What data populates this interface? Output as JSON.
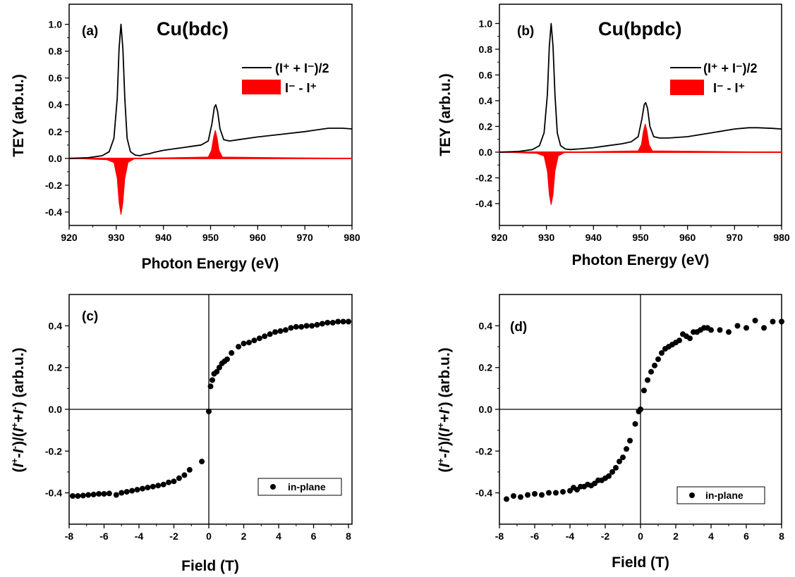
{
  "colors": {
    "sum": "#000000",
    "diff": "#ff0000",
    "points": "#000000"
  },
  "chart_data": [
    {
      "type": "line",
      "panel_label": "(a)",
      "title": "Cu(bdc)",
      "xlabel": "Photon Energy (eV)",
      "ylabel": "TEY (arb.u.)",
      "xlim": [
        920,
        980
      ],
      "ylim": [
        -0.5,
        1.15
      ],
      "xticks": [
        "920",
        "930",
        "940",
        "950",
        "960",
        "970",
        "980"
      ],
      "yticks": [
        "-0.4",
        "-0.2",
        "0.0",
        "0.2",
        "0.4",
        "0.6",
        "0.8",
        "1.0"
      ],
      "legend_position": "right",
      "legend": {
        "sum": "(I⁺ + I⁻)/2",
        "diff": "I⁻  -  I⁺"
      },
      "series": [
        {
          "name": "(I⁺ + I⁻)/2",
          "style": "line",
          "x": [
            920,
            924,
            927,
            928.5,
            929.5,
            930.2,
            930.6,
            931,
            931.4,
            931.8,
            932.3,
            933,
            934,
            935,
            936,
            937,
            938,
            940,
            942,
            944,
            946,
            948,
            949.5,
            950.3,
            950.8,
            951.1,
            951.5,
            952,
            952.8,
            954,
            956,
            960,
            965,
            970,
            972,
            975,
            978,
            980
          ],
          "y": [
            0.0,
            0.005,
            0.02,
            0.05,
            0.15,
            0.45,
            0.82,
            1.0,
            0.82,
            0.45,
            0.15,
            0.05,
            0.025,
            0.02,
            0.03,
            0.035,
            0.045,
            0.06,
            0.07,
            0.08,
            0.09,
            0.1,
            0.13,
            0.26,
            0.38,
            0.4,
            0.35,
            0.22,
            0.14,
            0.13,
            0.14,
            0.16,
            0.18,
            0.2,
            0.21,
            0.225,
            0.225,
            0.22
          ]
        },
        {
          "name": "I⁻  -  I⁺",
          "style": "fill",
          "x": [
            920,
            928,
            929.5,
            930.2,
            930.6,
            931,
            931.4,
            931.8,
            932.5,
            934,
            949.5,
            950.2,
            950.6,
            951,
            951.4,
            951.8,
            952.5,
            980
          ],
          "y": [
            0.0,
            -0.01,
            -0.03,
            -0.15,
            -0.33,
            -0.42,
            -0.33,
            -0.15,
            -0.03,
            0.0,
            0.01,
            0.06,
            0.15,
            0.21,
            0.15,
            0.06,
            0.01,
            0.0
          ]
        }
      ]
    },
    {
      "type": "line",
      "panel_label": "(b)",
      "title": "Cu(bpdc)",
      "xlabel": "Photon Energy (eV)",
      "ylabel": "TEY (arb.u.)",
      "xlim": [
        920,
        980
      ],
      "ylim": [
        -0.57,
        1.15
      ],
      "xticks": [
        "920",
        "930",
        "940",
        "950",
        "960",
        "970",
        "980"
      ],
      "yticks": [
        "-0.4",
        "-0.2",
        "0.0",
        "0.2",
        "0.4",
        "0.6",
        "0.8",
        "1.0"
      ],
      "legend_position": "right",
      "legend": {
        "sum": "(I⁺ + I⁻)/2",
        "diff": "I⁻  -  I⁺"
      },
      "series": [
        {
          "name": "(I⁺ + I⁻)/2",
          "style": "line",
          "x": [
            920,
            924,
            927,
            928.5,
            929.5,
            930.2,
            930.6,
            931,
            931.4,
            931.8,
            932.3,
            933,
            934,
            935,
            937,
            940,
            943,
            946,
            948,
            949.5,
            950.3,
            950.8,
            951.1,
            951.5,
            952,
            952.8,
            954,
            956,
            960,
            965,
            970,
            973,
            975,
            978,
            980
          ],
          "y": [
            0.0,
            0.005,
            0.02,
            0.05,
            0.15,
            0.45,
            0.82,
            1.0,
            0.82,
            0.45,
            0.15,
            0.05,
            0.025,
            0.02,
            0.025,
            0.035,
            0.05,
            0.065,
            0.08,
            0.12,
            0.26,
            0.37,
            0.385,
            0.34,
            0.2,
            0.12,
            0.11,
            0.11,
            0.12,
            0.15,
            0.18,
            0.19,
            0.19,
            0.185,
            0.18
          ]
        },
        {
          "name": "I⁻  -  I⁺",
          "style": "fill",
          "x": [
            920,
            928,
            929.5,
            930.2,
            930.6,
            931,
            931.4,
            931.8,
            932.5,
            934,
            949.5,
            950.2,
            950.6,
            951,
            951.4,
            951.8,
            952.5,
            980
          ],
          "y": [
            0.0,
            -0.01,
            -0.03,
            -0.15,
            -0.33,
            -0.41,
            -0.33,
            -0.15,
            -0.03,
            0.0,
            0.01,
            0.06,
            0.16,
            0.22,
            0.16,
            0.06,
            0.01,
            0.0
          ]
        }
      ]
    },
    {
      "type": "scatter",
      "panel_label": "(c)",
      "xlabel": "Field (T)",
      "ylabel": "(I⁺-I⁻)/(I⁺+I⁻) (arb.u.)",
      "xlim": [
        -8,
        8.2
      ],
      "ylim": [
        -0.55,
        0.55
      ],
      "xticks": [
        "-8",
        "-6",
        "-4",
        "-2",
        "0",
        "2",
        "4",
        "6",
        "8"
      ],
      "yticks": [
        "-0.4",
        "-0.2",
        "0.0",
        "0.2",
        "0.4"
      ],
      "legend_position": "bottom-right",
      "legend": {
        "points": "in-plane"
      },
      "series": [
        {
          "name": "in-plane",
          "x": [
            -7.8,
            -7.5,
            -7.2,
            -6.9,
            -6.6,
            -6.3,
            -6.0,
            -5.7,
            -5.3,
            -5.0,
            -4.7,
            -4.4,
            -4.1,
            -3.8,
            -3.5,
            -3.2,
            -2.9,
            -2.6,
            -2.3,
            -2.0,
            -1.7,
            -1.4,
            -1.1,
            -0.4,
            0.0,
            0.1,
            0.2,
            0.3,
            0.45,
            0.6,
            0.75,
            0.9,
            1.05,
            1.3,
            1.7,
            2.0,
            2.3,
            2.6,
            2.9,
            3.2,
            3.5,
            3.8,
            4.1,
            4.4,
            4.7,
            5.0,
            5.3,
            5.6,
            5.9,
            6.2,
            6.5,
            6.8,
            7.1,
            7.4,
            7.7,
            8.0
          ],
          "y": [
            -0.415,
            -0.415,
            -0.413,
            -0.41,
            -0.408,
            -0.405,
            -0.405,
            -0.403,
            -0.41,
            -0.4,
            -0.395,
            -0.39,
            -0.385,
            -0.38,
            -0.375,
            -0.37,
            -0.365,
            -0.36,
            -0.35,
            -0.345,
            -0.33,
            -0.315,
            -0.29,
            -0.25,
            -0.01,
            0.11,
            0.14,
            0.17,
            0.18,
            0.2,
            0.22,
            0.23,
            0.24,
            0.27,
            0.3,
            0.315,
            0.32,
            0.33,
            0.34,
            0.35,
            0.36,
            0.37,
            0.375,
            0.38,
            0.39,
            0.395,
            0.395,
            0.4,
            0.4,
            0.405,
            0.41,
            0.415,
            0.415,
            0.42,
            0.42,
            0.42
          ]
        }
      ]
    },
    {
      "type": "scatter",
      "panel_label": "(d)",
      "xlabel": "Field (T)",
      "ylabel": "(I⁺-I⁻)/(I⁺+I⁻) (arb.u.)",
      "xlim": [
        -8,
        8
      ],
      "ylim": [
        -0.55,
        0.55
      ],
      "xticks": [
        "-8",
        "-6",
        "-4",
        "-2",
        "0",
        "2",
        "4",
        "6",
        "8"
      ],
      "yticks": [
        "-0.4",
        "-0.2",
        "0.0",
        "0.2",
        "0.4"
      ],
      "legend_position": "bottom-right",
      "legend": {
        "points": "in-plane"
      },
      "series": [
        {
          "name": "in-plane",
          "x": [
            -7.6,
            -7.2,
            -6.8,
            -6.4,
            -6.0,
            -5.6,
            -5.2,
            -4.8,
            -4.4,
            -4.0,
            -3.8,
            -3.6,
            -3.4,
            -3.2,
            -3.0,
            -2.8,
            -2.6,
            -2.4,
            -2.2,
            -2.0,
            -1.8,
            -1.6,
            -1.4,
            -1.2,
            -1.0,
            -0.8,
            -0.6,
            -0.3,
            -0.1,
            0.0,
            0.2,
            0.4,
            0.6,
            0.8,
            1.0,
            1.2,
            1.4,
            1.6,
            1.8,
            2.0,
            2.2,
            2.4,
            2.6,
            2.8,
            3.0,
            3.2,
            3.4,
            3.6,
            3.8,
            4.0,
            4.5,
            5.0,
            5.5,
            6.0,
            6.5,
            7.0,
            7.5,
            8.0
          ],
          "y": [
            -0.43,
            -0.415,
            -0.42,
            -0.41,
            -0.405,
            -0.41,
            -0.4,
            -0.4,
            -0.395,
            -0.39,
            -0.375,
            -0.385,
            -0.37,
            -0.37,
            -0.36,
            -0.365,
            -0.355,
            -0.34,
            -0.34,
            -0.33,
            -0.32,
            -0.3,
            -0.28,
            -0.25,
            -0.23,
            -0.19,
            -0.15,
            -0.07,
            -0.01,
            0.0,
            0.09,
            0.14,
            0.18,
            0.21,
            0.24,
            0.27,
            0.29,
            0.3,
            0.31,
            0.32,
            0.33,
            0.36,
            0.35,
            0.34,
            0.37,
            0.37,
            0.38,
            0.39,
            0.39,
            0.38,
            0.38,
            0.37,
            0.4,
            0.39,
            0.425,
            0.39,
            0.42,
            0.42
          ]
        }
      ]
    }
  ]
}
